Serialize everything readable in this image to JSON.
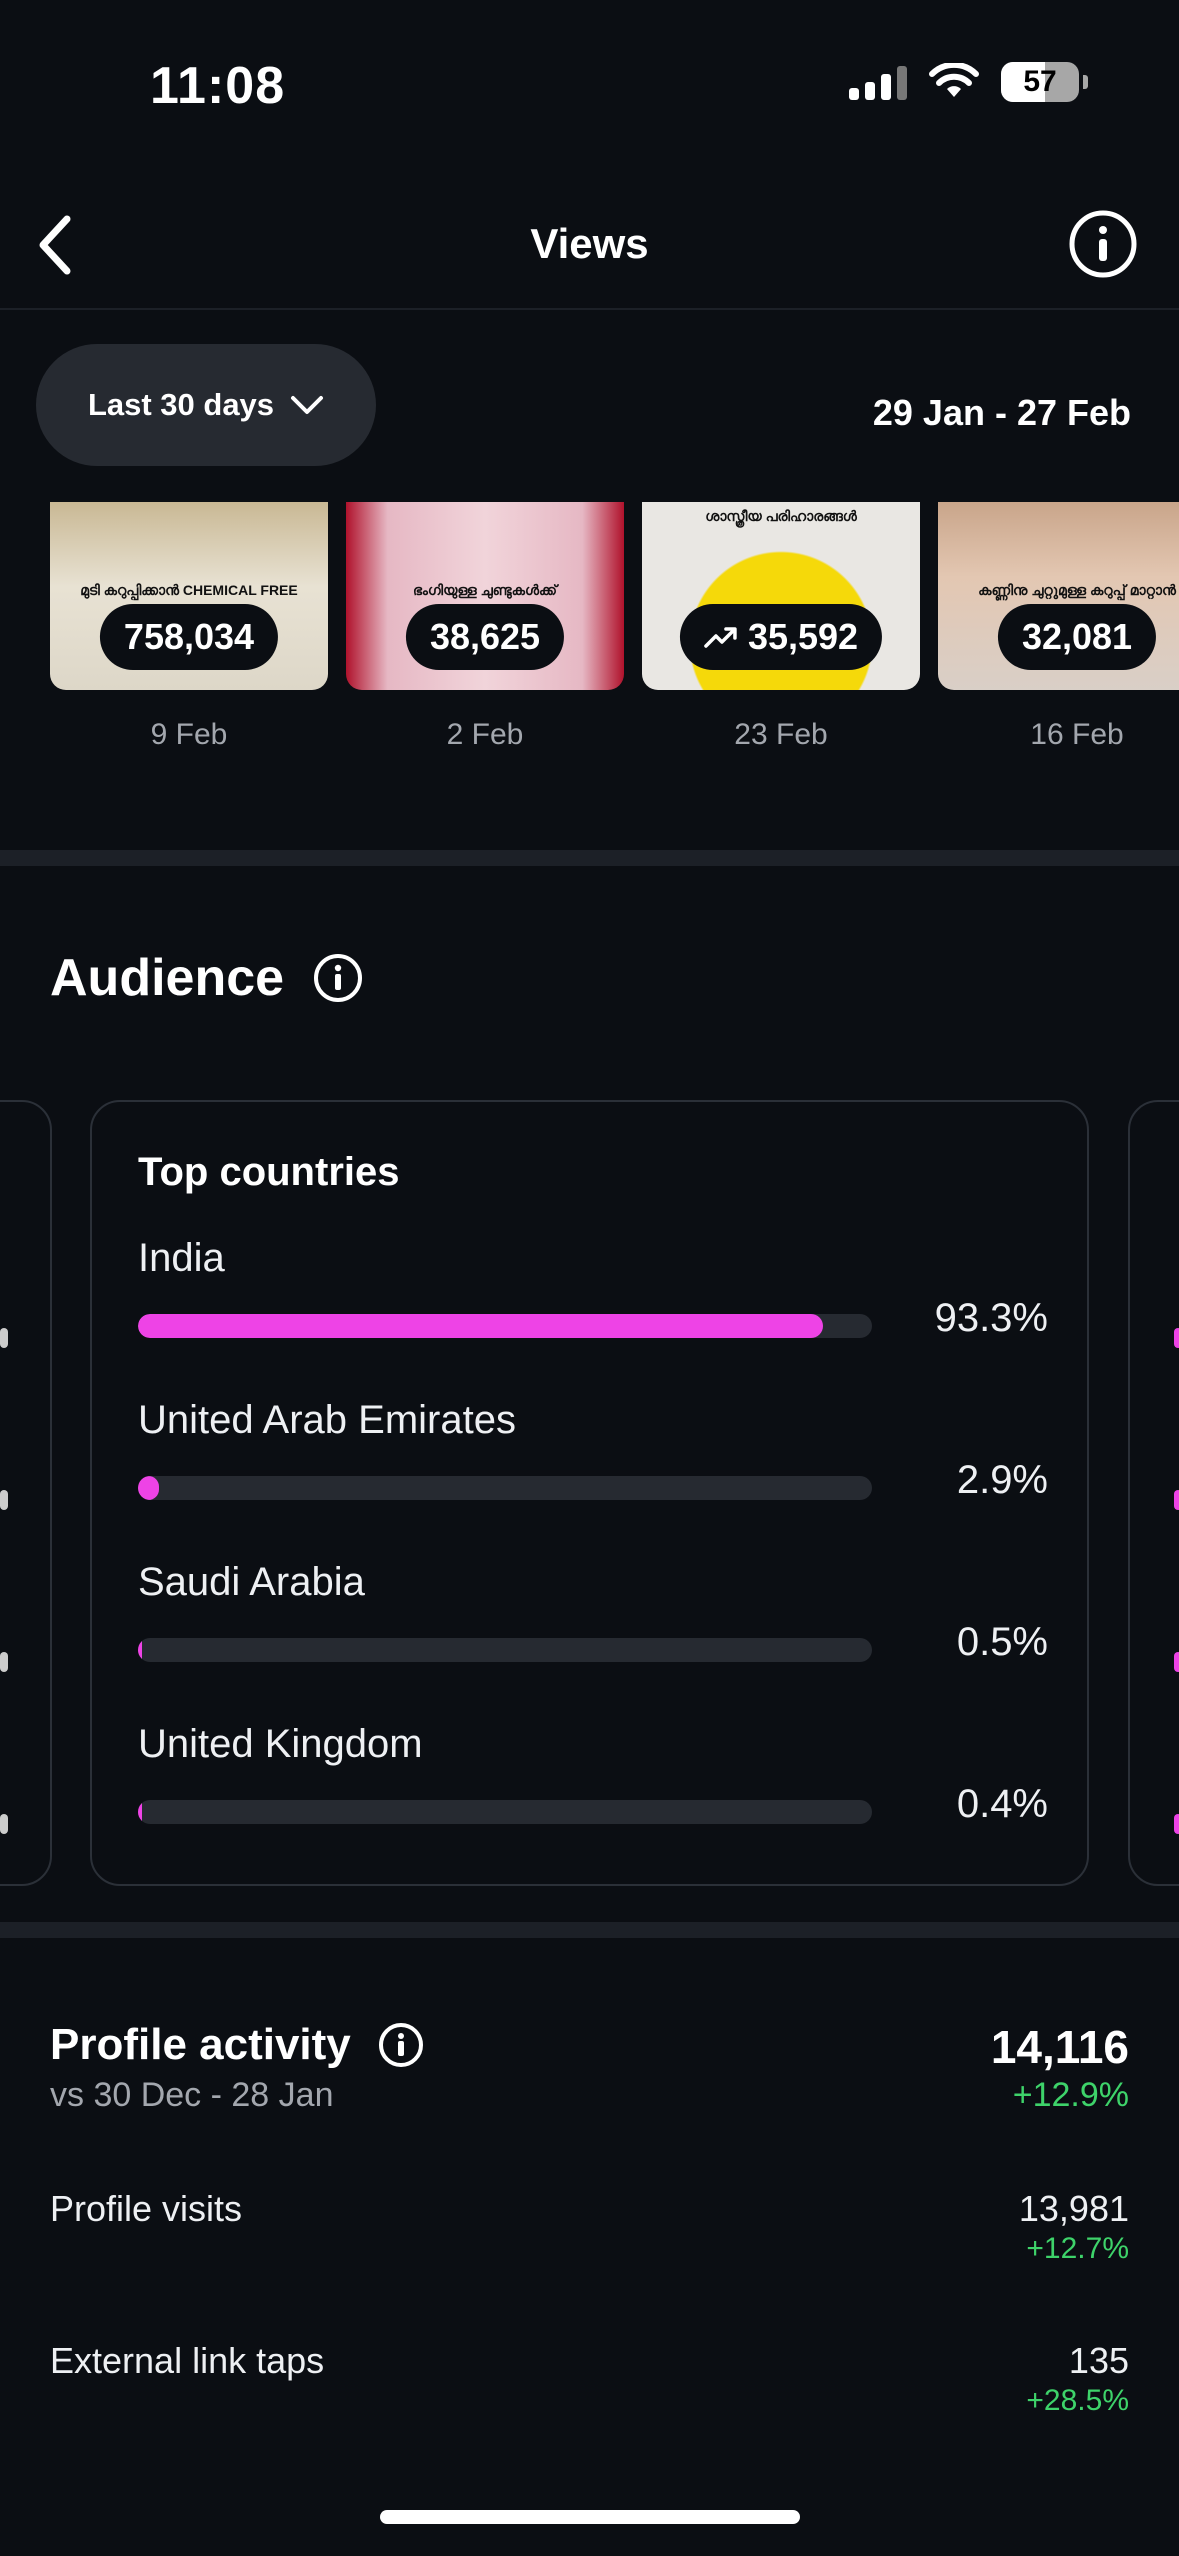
{
  "status_bar": {
    "time": "11:08",
    "battery": "57"
  },
  "header": {
    "title": "Views"
  },
  "filter": {
    "label": "Last 30 days",
    "date_range": "29 Jan - 27 Feb"
  },
  "thumbnails": [
    {
      "caption": "മുടി കറുപ്പിക്കാൻ CHEMICAL FREE",
      "views": "758,034",
      "date": "9 Feb",
      "trending": false
    },
    {
      "caption": "ഭംഗിയുള്ള ചുണ്ടുകൾക്ക്",
      "views": "38,625",
      "date": "2 Feb",
      "trending": false
    },
    {
      "caption": "ശാസ്ത്രീയ പരിഹാരങ്ങൾ",
      "views": "35,592",
      "date": "23 Feb",
      "trending": true
    },
    {
      "caption": "കണ്ണിനു ചുറ്റുമുള്ള കറുപ്പ് മാറ്റാൻ",
      "views": "32,081",
      "date": "16 Feb",
      "trending": false
    }
  ],
  "audience": {
    "title": "Audience",
    "top_countries": {
      "title": "Top countries",
      "items": [
        {
          "name": "India",
          "percent_label": "93.3%",
          "value": 93.3
        },
        {
          "name": "United Arab Emirates",
          "percent_label": "2.9%",
          "value": 2.9
        },
        {
          "name": "Saudi Arabia",
          "percent_label": "0.5%",
          "value": 0.5
        },
        {
          "name": "United Kingdom",
          "percent_label": "0.4%",
          "value": 0.4
        }
      ]
    }
  },
  "profile_activity": {
    "title": "Profile activity",
    "comparison": "vs 30 Dec - 28 Jan",
    "total": "14,116",
    "total_change": "+12.9%",
    "metrics": [
      {
        "label": "Profile visits",
        "value": "13,981",
        "change": "+12.7%"
      },
      {
        "label": "External link taps",
        "value": "135",
        "change": "+28.5%"
      }
    ]
  },
  "colors": {
    "accent": "#ee43e6",
    "positive": "#3ed36a",
    "background": "#0b0e13",
    "card_border": "#2b3038"
  },
  "icons": [
    "back-chevron-icon",
    "info-icon",
    "chevron-down-icon",
    "trending-up-icon",
    "wifi-icon",
    "signal-icon",
    "battery-icon"
  ]
}
